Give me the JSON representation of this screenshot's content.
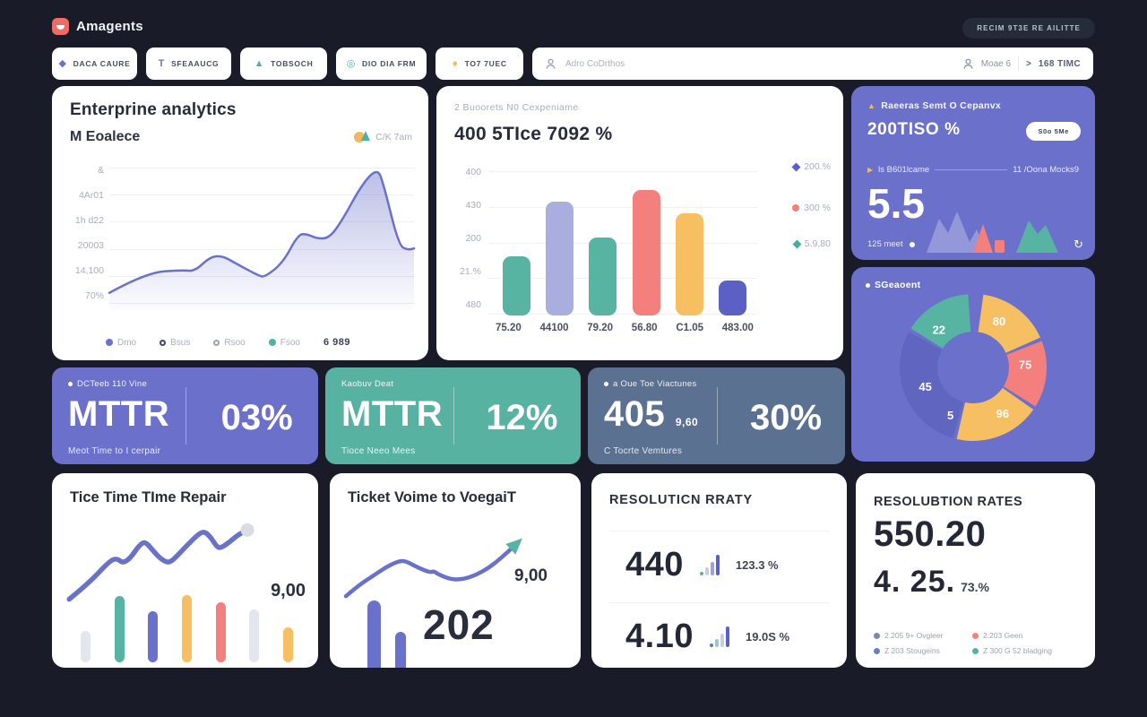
{
  "header": {
    "brand": "Amagents",
    "action_button": "RECIM 9T3E RE AILITTE"
  },
  "toolbar": {
    "buttons": [
      {
        "label": "DACA CAURE",
        "icon": "diamond-icon",
        "color": "#6a71c9"
      },
      {
        "label": "SFEAAUCG",
        "icon": "funnel-icon",
        "color": "#6a71c9"
      },
      {
        "label": "TOBSOCH",
        "icon": "triangle-icon",
        "color": "#4fb3a2"
      },
      {
        "label": "DIO DIA FRM",
        "icon": "target-icon",
        "color": "#4fb3a2"
      },
      {
        "label": "TO7 7UEC",
        "icon": "blob-icon",
        "color": "#f2b95c"
      }
    ],
    "search": {
      "placeholder": "Adro CoDrthos",
      "user_label": "Moae 6",
      "session_label": "168 TIMC"
    }
  },
  "line_card": {
    "title": "Enterprine analytics",
    "subtitle": "M Eoalece",
    "corner_label": "C/K 7am",
    "legend_value": "6 989"
  },
  "bar_card": {
    "header": "2   Buoorets N0 Cexpeniame",
    "title": "400 5TIce 7092 %"
  },
  "purple_card": {
    "header": "Raeeras Semt O Cepanvx",
    "value": "200TISO %",
    "pill_label": "S0o 5Me",
    "row_left": "ls  B601lcame",
    "row_right": "11 /Oona Mocks9",
    "big_value": "5.5",
    "footer": "125 meet"
  },
  "donut_card": {
    "label": "SGeaoent"
  },
  "stats": [
    {
      "tag": "DCTeeb 110 Vine",
      "metric": "MTTR",
      "percent": "03%",
      "caption": "Meot Time to I cerpair"
    },
    {
      "tag": "Kaobuv Deat",
      "metric": "MTTR",
      "percent": "12%",
      "caption": "Tioce Neeo Mees"
    },
    {
      "tag": "a Oue Toe Viactunes",
      "metric": "405",
      "metric_sub": "9,60",
      "percent": "30%",
      "caption": "C Tocrte Vemtures"
    }
  ],
  "repair_card": {
    "title": "Tice Time TIme Repair",
    "value": "9,00"
  },
  "ticket_card": {
    "title": "Ticket Voime to VoegaiT",
    "value": "9,00",
    "big_value": "202"
  },
  "resolution_card": {
    "title": "RESOLUTICN RRATY",
    "rows": [
      {
        "value": "440",
        "percent": "123.3 %"
      },
      {
        "value": "4.10",
        "percent": "19.0S %"
      }
    ]
  },
  "rates_card": {
    "title": "RESOLUBTION RATES",
    "value_primary": "550.20",
    "value_secondary": "4. 25.",
    "value_secondary_pct": "73.%",
    "legend": [
      {
        "label": "2.205 9+ Ovgleer",
        "color": "#7d87ab"
      },
      {
        "label": "2.203 Geen",
        "color": "#f4807e"
      },
      {
        "label": "Z 203 Stougeins",
        "color": "#6a7fc0"
      },
      {
        "label": "Z 300 G 52 bladging",
        "color": "#52b3a0"
      }
    ]
  },
  "chart_data": [
    {
      "id": "enterprise-area",
      "type": "area",
      "title": "Enterprine analytics",
      "y_axis_labels": [
        "&",
        "4Ar01",
        "1h d22",
        "20003",
        "14,100",
        "70%"
      ],
      "legend": [
        {
          "label": "Dmo",
          "color": "#6a71c9",
          "style": "filled"
        },
        {
          "label": "Bsus",
          "color": "#3f4677",
          "style": "ring"
        },
        {
          "label": "Rsoo",
          "color": "#9aa0b5",
          "style": "ring"
        },
        {
          "label": "Fsoo",
          "color": "#4fb3a2",
          "style": "filled"
        }
      ],
      "annotation": "6 989",
      "series": [
        {
          "name": "Dmo",
          "color": "#6a71c9",
          "points": [
            [
              0,
              88
            ],
            [
              12,
              74
            ],
            [
              24,
              72
            ],
            [
              28,
              73
            ],
            [
              33,
              63
            ],
            [
              37,
              62
            ],
            [
              42,
              68
            ],
            [
              49,
              76
            ],
            [
              51,
              77
            ],
            [
              57,
              67
            ],
            [
              62,
              47
            ],
            [
              65,
              47
            ],
            [
              68,
              50
            ],
            [
              72,
              50
            ],
            [
              76,
              39
            ],
            [
              83,
              12
            ],
            [
              88,
              1
            ],
            [
              90,
              12
            ],
            [
              95,
              55
            ],
            [
              98,
              58
            ],
            [
              100,
              57
            ]
          ]
        }
      ]
    },
    {
      "id": "top-bars",
      "type": "bar",
      "categories": [
        "75.20",
        "44100",
        "79.20",
        "56.80",
        "C1.05",
        "483.00"
      ],
      "values": [
        41,
        79,
        54,
        87,
        71,
        24
      ],
      "colors": [
        "#57b3a2",
        "#a9aede",
        "#57b3a2",
        "#f4807e",
        "#f6bf62",
        "#5b60c4"
      ],
      "y_tick_labels": [
        "400",
        "430",
        "200",
        "21.%",
        "480"
      ],
      "legend": [
        {
          "label": "200.%",
          "color": "#5b60c4",
          "marker": "diamond"
        },
        {
          "label": "300 %",
          "color": "#f4807e",
          "marker": "circle"
        },
        {
          "label": "5.9,80",
          "color": "#3fae9d",
          "marker": "diamond"
        }
      ]
    },
    {
      "id": "segment-donut",
      "type": "pie",
      "label": "SGeaoent",
      "slices": [
        {
          "value": "80",
          "color": "#f6bf62",
          "start": 8,
          "end": 66,
          "label_angle": 30,
          "label_r": 58
        },
        {
          "value": "75",
          "color": "#f4807e",
          "start": 69,
          "end": 122,
          "label_angle": 88,
          "label_r": 58
        },
        {
          "value": "96",
          "color": "#f6bf62",
          "start": 125,
          "end": 193,
          "label_angle": 148,
          "label_r": 62
        },
        {
          "value": "45",
          "color": "#6065bf",
          "start": 196,
          "end": 299,
          "label_angle": 247,
          "label_r": 58
        },
        {
          "value": "22",
          "color": "#57b3a2",
          "start": 302,
          "end": 356,
          "label_angle": 317,
          "label_r": 56
        }
      ],
      "extra_labels": [
        {
          "text": "5",
          "angle": 205,
          "r": 60
        }
      ]
    },
    {
      "id": "repair-mini",
      "type": "bar",
      "values": [
        38,
        80,
        62,
        82,
        73,
        64,
        42
      ],
      "colors": [
        "#e3e6ee",
        "#57b3a2",
        "#6a71c9",
        "#f6bf62",
        "#f4807e",
        "#e3e6ee",
        "#f6bf62"
      ],
      "line_points": [
        [
          1.5,
          92
        ],
        [
          12,
          72
        ],
        [
          23,
          44
        ],
        [
          27,
          43
        ],
        [
          29,
          48
        ],
        [
          33,
          43
        ],
        [
          38,
          26
        ],
        [
          41,
          22
        ],
        [
          45,
          33
        ],
        [
          49,
          43
        ],
        [
          53,
          48
        ],
        [
          56,
          43
        ],
        [
          62,
          28
        ],
        [
          69,
          12
        ],
        [
          72,
          10
        ],
        [
          75,
          17
        ],
        [
          78,
          28
        ],
        [
          80,
          30
        ],
        [
          84,
          24
        ],
        [
          89,
          14
        ],
        [
          94,
          8
        ]
      ]
    },
    {
      "id": "ticket-mini",
      "type": "line",
      "values": [
        100,
        57
      ],
      "line_points": [
        [
          2,
          94
        ],
        [
          9,
          79
        ],
        [
          17,
          66
        ],
        [
          26,
          51
        ],
        [
          33,
          44
        ],
        [
          37,
          47
        ],
        [
          42,
          54
        ],
        [
          49,
          61
        ],
        [
          51,
          59
        ],
        [
          54,
          64
        ],
        [
          61,
          71
        ],
        [
          68,
          70
        ],
        [
          75,
          64
        ],
        [
          82,
          54
        ],
        [
          89,
          40
        ],
        [
          95,
          26
        ]
      ]
    }
  ]
}
